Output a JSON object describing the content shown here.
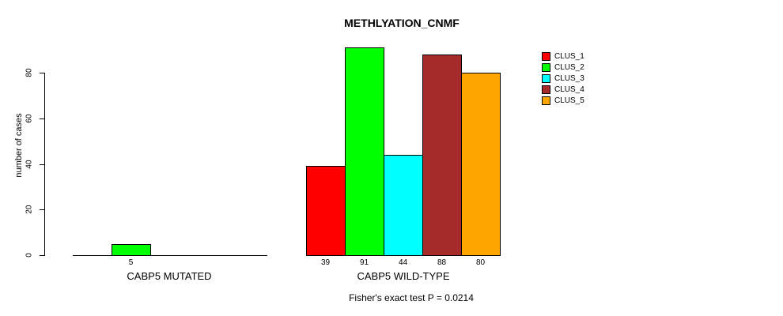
{
  "chart_data": {
    "type": "bar",
    "title": "METHLYATION_CNMF",
    "ylabel": "number of cases",
    "ylim": [
      0,
      92
    ],
    "yticks": [
      "0",
      "20",
      "40",
      "60",
      "80"
    ],
    "grid": false,
    "legend_position": "right",
    "legend": {
      "entries": [
        {
          "label": "CLUS_1",
          "color": "#FF0000"
        },
        {
          "label": "CLUS_2",
          "color": "#00FF00"
        },
        {
          "label": "CLUS_3",
          "color": "#00FFFF"
        },
        {
          "label": "CLUS_4",
          "color": "#A52A2A"
        },
        {
          "label": "CLUS_5",
          "color": "#FFA500"
        }
      ]
    },
    "categories": [
      "CABP5 MUTATED",
      "CABP5 WILD-TYPE"
    ],
    "series": [
      {
        "name": "CLUS_1",
        "color": "#FF0000",
        "values": [
          0,
          39
        ]
      },
      {
        "name": "CLUS_2",
        "color": "#00FF00",
        "values": [
          5,
          91
        ]
      },
      {
        "name": "CLUS_3",
        "color": "#00FFFF",
        "values": [
          0,
          44
        ]
      },
      {
        "name": "CLUS_4",
        "color": "#A52A2A",
        "values": [
          0,
          88
        ]
      },
      {
        "name": "CLUS_5",
        "color": "#FFA500",
        "values": [
          0,
          80
        ]
      }
    ],
    "bar_labels": [
      [
        "",
        "5",
        "",
        "",
        ""
      ],
      [
        "39",
        "91",
        "44",
        "88",
        "80"
      ]
    ],
    "annotation": "Fisher's exact test P = 0.0214"
  }
}
